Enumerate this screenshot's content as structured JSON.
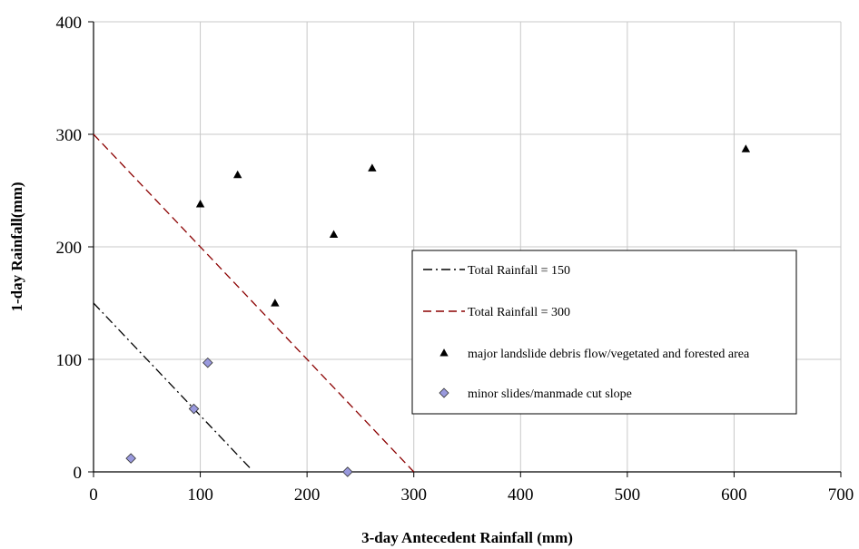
{
  "chart_data": {
    "type": "scatter",
    "xlabel": "3-day Antecedent Rainfall (mm)",
    "ylabel": "1-day Rainfall(mm)",
    "xlim": [
      0,
      700
    ],
    "ylim": [
      0,
      400
    ],
    "xticks": [
      0,
      100,
      200,
      300,
      400,
      500,
      600,
      700
    ],
    "yticks": [
      0,
      100,
      200,
      300,
      400
    ],
    "grid": true,
    "legend_position": "right",
    "series": [
      {
        "name": "Total Rainfall = 150",
        "kind": "line",
        "style": "dash-dot",
        "color": "#000000",
        "x": [
          0,
          148
        ],
        "y": [
          150,
          2
        ]
      },
      {
        "name": "Total Rainfall = 300",
        "kind": "line",
        "style": "dashed",
        "color": "#8b0000",
        "x": [
          0,
          300
        ],
        "y": [
          300,
          0
        ]
      },
      {
        "name": "major landslide debris flow/vegetated and forested area",
        "kind": "scatter",
        "marker": "triangle",
        "color": "#000000",
        "x": [
          100,
          135,
          170,
          225,
          261,
          611
        ],
        "y": [
          238,
          264,
          150,
          211,
          270,
          287
        ]
      },
      {
        "name": "minor slides/manmade cut slope",
        "kind": "scatter",
        "marker": "diamond",
        "color": "#9999dd",
        "x": [
          35,
          94,
          107,
          238
        ],
        "y": [
          12,
          56,
          97,
          0
        ]
      }
    ]
  }
}
